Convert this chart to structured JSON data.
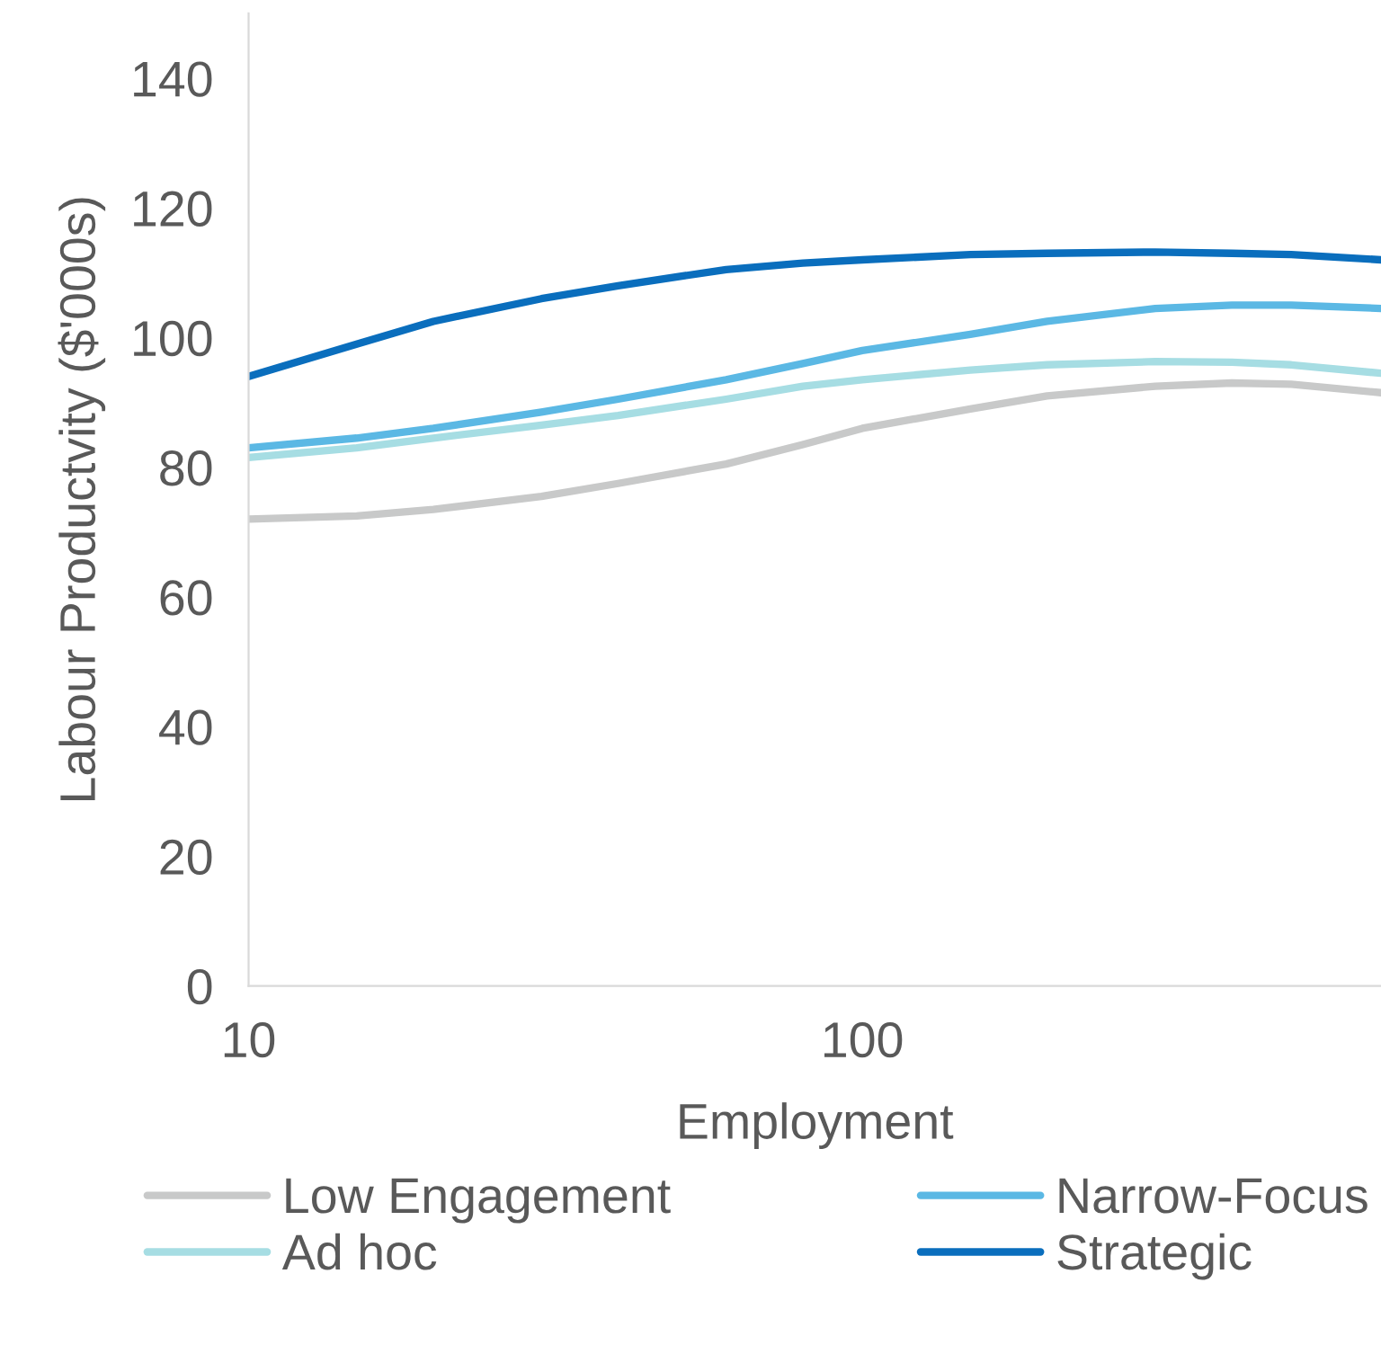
{
  "chart_data": {
    "type": "line",
    "xlabel": "Employment",
    "ylabel": "Labour Productvity ($'000s)",
    "x": [
      10,
      15,
      20,
      30,
      40,
      60,
      80,
      100,
      150,
      200,
      300,
      400,
      500,
      700
    ],
    "series": [
      {
        "name": "Low Engagement",
        "color": "#c8c9c9",
        "values": [
          72,
          72.5,
          73.5,
          75.5,
          77.5,
          80.5,
          83.5,
          86,
          89,
          91,
          92.5,
          93,
          92.8,
          91.5
        ]
      },
      {
        "name": "Ad hoc",
        "color": "#a6dde3",
        "values": [
          81.5,
          83,
          84.5,
          86.5,
          88,
          90.5,
          92.5,
          93.5,
          95,
          95.8,
          96.3,
          96.2,
          95.8,
          94.5
        ]
      },
      {
        "name": "Narrow-Focus",
        "color": "#5bb8e4",
        "values": [
          83,
          84.5,
          86,
          88.5,
          90.5,
          93.5,
          96,
          98,
          100.5,
          102.5,
          104.5,
          105,
          105,
          104.5
        ]
      },
      {
        "name": "Strategic",
        "color": "#0a6ebd",
        "values": [
          94,
          99,
          102.5,
          106,
          108,
          110.5,
          111.5,
          112,
          112.8,
          113,
          113.2,
          113,
          112.8,
          112
        ]
      }
    ],
    "log": "x",
    "xlim": [
      10,
      700
    ],
    "xticks": [
      10,
      100
    ],
    "ylim": [
      0,
      150
    ],
    "yticks": [
      0,
      20,
      40,
      60,
      80,
      100,
      120,
      140
    ],
    "grid": false,
    "legend": "bottom",
    "marker": "none",
    "line_style": "solid"
  }
}
